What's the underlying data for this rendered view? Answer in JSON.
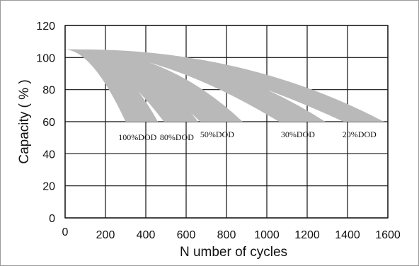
{
  "chart_data": {
    "type": "area",
    "title": "",
    "xlabel": "N umber of cycles",
    "ylabel": "Capacity ( % )",
    "xlim": [
      0,
      1600
    ],
    "ylim": [
      0,
      120
    ],
    "x_ticks": [
      "0",
      "200",
      "400",
      "600",
      "800",
      "1000",
      "1200",
      "1400",
      "1600"
    ],
    "y_ticks": [
      "0",
      "20",
      "40",
      "60",
      "80",
      "100",
      "120"
    ],
    "grid": true,
    "band_color": "#b9b9b9",
    "series": [
      {
        "name": "100%DOD",
        "start": [
          0,
          105
        ],
        "inner_end": [
          300,
          60
        ],
        "outer_end": [
          460,
          60
        ]
      },
      {
        "name": "80%DOD",
        "start": [
          0,
          105
        ],
        "inner_end": [
          490,
          60
        ],
        "outer_end": [
          660,
          60
        ]
      },
      {
        "name": "50%DOD",
        "start": [
          0,
          105
        ],
        "inner_end": [
          670,
          60
        ],
        "outer_end": [
          880,
          60
        ]
      },
      {
        "name": "30%DOD",
        "start": [
          0,
          105
        ],
        "inner_end": [
          1060,
          60
        ],
        "outer_end": [
          1290,
          60
        ]
      },
      {
        "name": "20%DOD",
        "start": [
          0,
          105
        ],
        "inner_end": [
          1380,
          60
        ],
        "outer_end": [
          1580,
          60
        ]
      }
    ]
  }
}
